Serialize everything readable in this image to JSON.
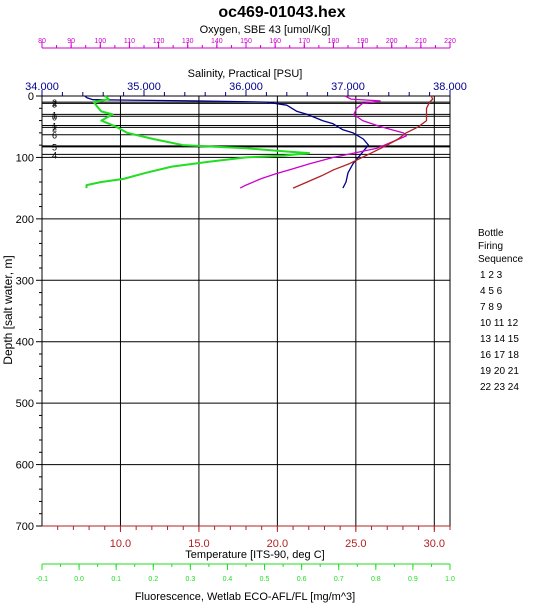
{
  "chart_data": {
    "type": "line",
    "title": "oc469-01043.hex",
    "ylabel": "Depth [salt water, m]",
    "y_ticks": [
      0,
      100,
      200,
      300,
      400,
      500,
      600,
      700
    ],
    "ylim": [
      0,
      700
    ],
    "y_inverted": true,
    "grid": true,
    "axes": {
      "salinity": {
        "label": "Salinity, Practical [PSU]",
        "ticks": [
          "34.000",
          "35.000",
          "36.000",
          "37.000",
          "38.000"
        ],
        "range": [
          34,
          38
        ],
        "color": "#00008b",
        "position": "top"
      },
      "oxygen": {
        "label": "Oxygen, SBE 43 [umol/Kg]",
        "ticks": [
          "80",
          "90",
          "100",
          "110",
          "120",
          "130",
          "140",
          "150",
          "160",
          "170",
          "180",
          "190",
          "200",
          "210",
          "220"
        ],
        "range": [
          80,
          220
        ],
        "color": "#cc00cc",
        "position": "top"
      },
      "temperature": {
        "label": "Temperature [ITS-90, deg C]",
        "ticks": [
          "10.0",
          "15.0",
          "20.0",
          "25.0",
          "30.0"
        ],
        "range": [
          5,
          31
        ],
        "color": "#b22222",
        "position": "bottom"
      },
      "fluorescence": {
        "label": "Fluorescence, Wetlab ECO-AFL/FL [mg/m^3]",
        "ticks": [
          "-0.1",
          "0.0",
          "0.1",
          "0.2",
          "0.3",
          "0.4",
          "0.5",
          "0.6",
          "0.7",
          "0.8",
          "0.9",
          "1.0"
        ],
        "range": [
          -0.1,
          1.0
        ],
        "color": "#22dd22",
        "position": "bottom"
      }
    },
    "series": [
      {
        "key": "salinity",
        "color": "#00008b",
        "points": [
          [
            34.42,
            0
          ],
          [
            34.44,
            3
          ],
          [
            34.5,
            6
          ],
          [
            35.5,
            8
          ],
          [
            36.2,
            10
          ],
          [
            36.4,
            15
          ],
          [
            36.45,
            20
          ],
          [
            36.5,
            25
          ],
          [
            36.6,
            30
          ],
          [
            36.75,
            40
          ],
          [
            36.85,
            45
          ],
          [
            36.95,
            55
          ],
          [
            37.05,
            60
          ],
          [
            37.15,
            70
          ],
          [
            37.2,
            80
          ],
          [
            37.15,
            90
          ],
          [
            37.1,
            100
          ],
          [
            37.05,
            110
          ],
          [
            37.0,
            125
          ],
          [
            36.98,
            140
          ],
          [
            36.95,
            150
          ]
        ]
      },
      {
        "key": "oxygen",
        "color": "#cc00cc",
        "points": [
          [
            184,
            0
          ],
          [
            186,
            5
          ],
          [
            196,
            8
          ],
          [
            190,
            12
          ],
          [
            188,
            20
          ],
          [
            187,
            30
          ],
          [
            190,
            40
          ],
          [
            195,
            48
          ],
          [
            200,
            55
          ],
          [
            204,
            60
          ],
          [
            205,
            65
          ],
          [
            200,
            75
          ],
          [
            195,
            85
          ],
          [
            188,
            92
          ],
          [
            180,
            100
          ],
          [
            172,
            110
          ],
          [
            165,
            120
          ],
          [
            160,
            127
          ],
          [
            155,
            135
          ],
          [
            150,
            145
          ],
          [
            148,
            150
          ]
        ]
      },
      {
        "key": "temperature",
        "color": "#b22222",
        "points": [
          [
            29.8,
            0
          ],
          [
            29.9,
            5
          ],
          [
            29.7,
            10
          ],
          [
            29.5,
            20
          ],
          [
            29.5,
            30
          ],
          [
            29.5,
            40
          ],
          [
            29.0,
            50
          ],
          [
            28.2,
            60
          ],
          [
            27.7,
            70
          ],
          [
            27.0,
            80
          ],
          [
            26.2,
            90
          ],
          [
            25.4,
            100
          ],
          [
            24.6,
            110
          ],
          [
            23.6,
            120
          ],
          [
            22.8,
            130
          ],
          [
            21.9,
            140
          ],
          [
            21.0,
            150
          ]
        ]
      },
      {
        "key": "fluorescence",
        "color": "#22dd22",
        "points": [
          [
            0.07,
            0
          ],
          [
            0.08,
            5
          ],
          [
            0.04,
            10
          ],
          [
            0.05,
            18
          ],
          [
            0.06,
            25
          ],
          [
            0.09,
            30
          ],
          [
            0.06,
            40
          ],
          [
            0.1,
            50
          ],
          [
            0.13,
            60
          ],
          [
            0.2,
            70
          ],
          [
            0.28,
            80
          ],
          [
            0.45,
            85
          ],
          [
            0.55,
            90
          ],
          [
            0.62,
            93
          ],
          [
            0.55,
            97
          ],
          [
            0.45,
            100
          ],
          [
            0.35,
            107
          ],
          [
            0.25,
            115
          ],
          [
            0.18,
            125
          ],
          [
            0.12,
            135
          ],
          [
            0.06,
            140
          ],
          [
            0.02,
            145
          ],
          [
            0.02,
            150
          ]
        ]
      }
    ],
    "bottle_depths": [
      {
        "depth": 10,
        "label": "2"
      },
      {
        "depth": 12,
        "label": "3"
      },
      {
        "depth": 30,
        "label": "1"
      },
      {
        "depth": 33,
        "label": "0"
      },
      {
        "depth": 48,
        "label": "1"
      },
      {
        "depth": 51,
        "label": "2"
      },
      {
        "depth": 63,
        "label": "6"
      },
      {
        "depth": 82,
        "label": "5"
      },
      {
        "depth": 95,
        "label": "4"
      }
    ],
    "legend": {
      "title_lines": [
        "Bottle",
        "Firing",
        "Sequence"
      ],
      "rows": [
        "1  2  3",
        "4  5  6",
        "7  8  9",
        "10 11 12",
        "13 14 15",
        "16 17 18",
        "19 20 21",
        "22 23 24"
      ],
      "placement": "right"
    }
  }
}
